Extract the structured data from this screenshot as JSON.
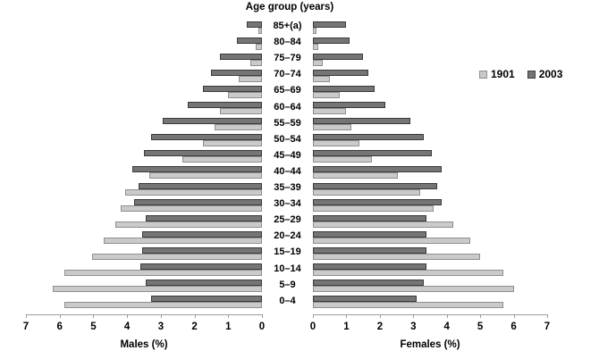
{
  "chart_data": {
    "type": "bar",
    "variant": "population-pyramid",
    "title": "Age group (years)",
    "xlabel_left": "Males (%)",
    "xlabel_right": "Females (%)",
    "xlim": [
      0,
      7
    ],
    "ticks": [
      0,
      1,
      2,
      3,
      4,
      5,
      6,
      7
    ],
    "grid": false,
    "legend_position": "right",
    "categories": [
      "85+(a)",
      "80–84",
      "75–79",
      "70–74",
      "65–69",
      "60–64",
      "55–59",
      "50–54",
      "45–49",
      "40–44",
      "35–39",
      "30–34",
      "25–29",
      "20–24",
      "15–19",
      "10–14",
      "5–9",
      "0–4"
    ],
    "series": [
      {
        "name": "1901",
        "color": "#c9c9c9",
        "males": [
          0.1,
          0.2,
          0.35,
          0.7,
          1.0,
          1.25,
          1.4,
          1.75,
          2.35,
          3.35,
          4.05,
          4.2,
          4.35,
          4.7,
          5.05,
          5.85,
          6.2,
          5.85
        ],
        "females": [
          0.1,
          0.15,
          0.3,
          0.5,
          0.8,
          1.0,
          1.15,
          1.4,
          1.75,
          2.55,
          3.2,
          3.6,
          4.2,
          4.7,
          5.0,
          5.7,
          6.0,
          5.7
        ]
      },
      {
        "name": "2003",
        "color": "#757575",
        "males": [
          0.45,
          0.75,
          1.25,
          1.5,
          1.75,
          2.2,
          2.95,
          3.3,
          3.5,
          3.85,
          3.65,
          3.8,
          3.45,
          3.55,
          3.55,
          3.6,
          3.45,
          3.3
        ],
        "females": [
          1.0,
          1.1,
          1.5,
          1.65,
          1.85,
          2.15,
          2.9,
          3.3,
          3.55,
          3.85,
          3.7,
          3.85,
          3.4,
          3.4,
          3.4,
          3.4,
          3.3,
          3.1
        ]
      }
    ]
  }
}
